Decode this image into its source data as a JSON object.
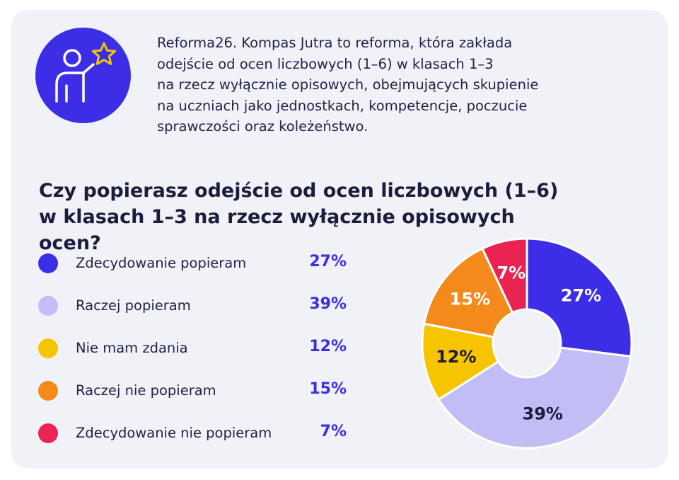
{
  "intro": {
    "lines": [
      "Reforma26. Kompas Jutra to reforma, która zakłada",
      "odejście od ocen liczbowych (1–6) w klasach 1–3",
      "na rzecz wyłącznie opisowych, obejmujących skupienie",
      "na uczniach jako jednostkach, kompetencje, poczucie",
      "sprawczości oraz koleżeństwo."
    ]
  },
  "icon": {
    "name": "teacher-star-icon",
    "bg_color": "#3c2ee6",
    "star_color": "#f7c400"
  },
  "chart_data": {
    "type": "pie",
    "donut": true,
    "title_lines": [
      "Czy popierasz odejście od ocen liczbowych (1–6)",
      "w klasach 1–3 na rzecz wyłącznie opisowych ocen?"
    ],
    "categories": [
      "Zdecydowanie popieram",
      "Raczej popieram",
      "Nie mam zdania",
      "Raczej nie popieram",
      "Zdecydowanie nie popieram"
    ],
    "values": [
      27,
      39,
      12,
      15,
      7
    ],
    "labels": [
      "27%",
      "39%",
      "12%",
      "15%",
      "7%"
    ],
    "colors": [
      "#3c2ee6",
      "#c3bdf6",
      "#f7c400",
      "#f38a1b",
      "#ea2452"
    ],
    "label_colors": [
      "#ffffff",
      "#1c1c3c",
      "#1c1c3c",
      "#ffffff",
      "#ffffff"
    ],
    "legend_placement": "left"
  }
}
